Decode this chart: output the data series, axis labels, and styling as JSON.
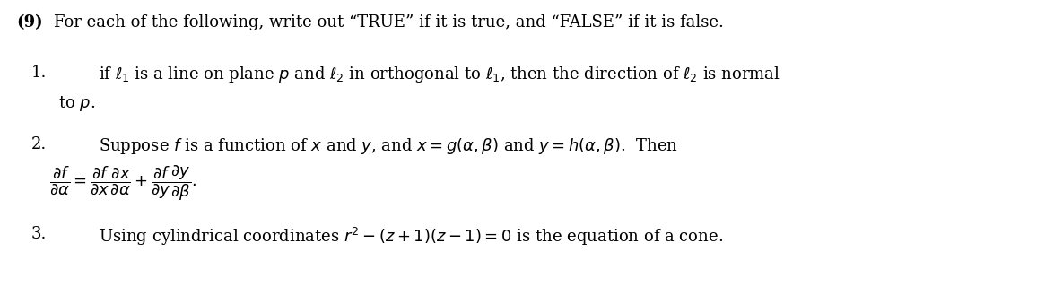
{
  "bg_color": "#ffffff",
  "text_color": "#000000",
  "fig_width": 11.75,
  "fig_height": 3.2,
  "dpi": 100,
  "header_num": "(9)",
  "header_text": "For each of the following, write out “TRUE” if it is true, and “FALSE” if it is false.",
  "item1_num": "1.",
  "item1_line1": "if $\\ell_1$ is a line on plane $p$ and $\\ell_2$ in orthogonal to $\\ell_1$, then the direction of $\\ell_2$ is normal",
  "item1_line2": "to $p$.",
  "item2_num": "2.",
  "item2_line1": "Suppose $f$ is a function of $x$ and $y$, and $x = g(\\alpha, \\beta)$ and $y = h(\\alpha, \\beta)$.  Then",
  "item2_formula": "$\\dfrac{\\partial f}{\\partial \\alpha} = \\dfrac{\\partial f}{\\partial x}\\dfrac{\\partial x}{\\partial \\alpha} + \\dfrac{\\partial f}{\\partial y}\\dfrac{\\partial y}{\\partial \\beta}.$",
  "item3_num": "3.",
  "item3_line1": "Using cylindrical coordinates $r^2 - (z+1)(z-1) = 0$ is the equation of a cone.",
  "fontsize": 13,
  "fontfamily": "serif"
}
